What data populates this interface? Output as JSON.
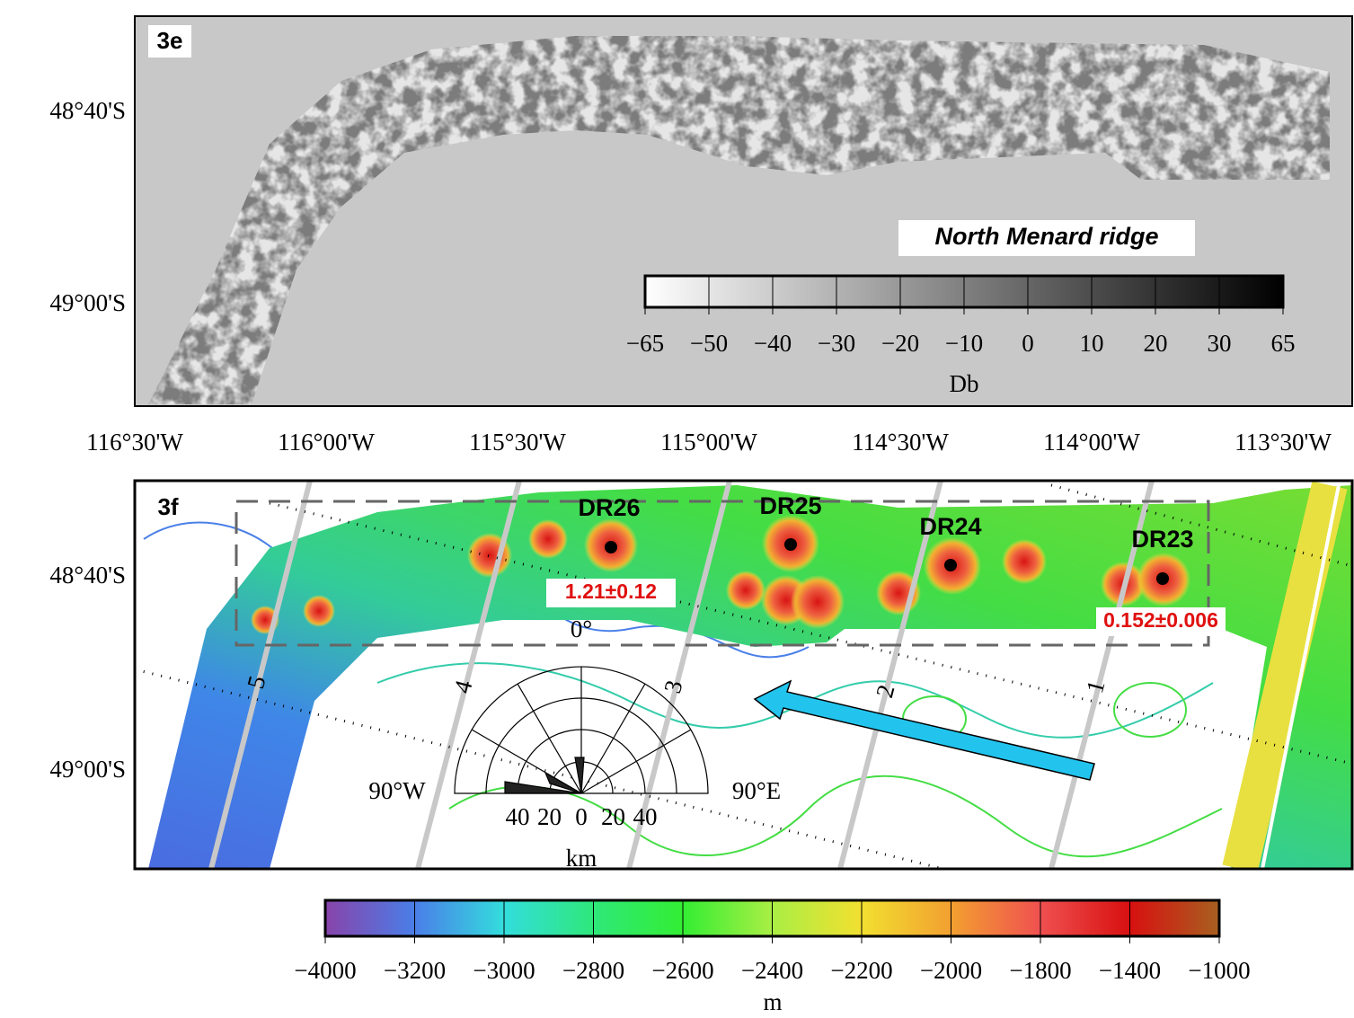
{
  "panel_e": {
    "label": "3e",
    "title": "North Menard ridge",
    "lat_labels": [
      "48°40'S",
      "49°00'S"
    ],
    "colorbar": {
      "ticks": [
        "−65",
        "−50",
        "−40",
        "−30",
        "−20",
        "−10",
        "0",
        "10",
        "20",
        "30",
        "65"
      ],
      "unit": "Db"
    }
  },
  "lon_labels": [
    "116°30'W",
    "116°00'W",
    "115°30'W",
    "115°00'W",
    "114°30'W",
    "114°00'W",
    "113°30'W"
  ],
  "panel_f": {
    "label": "3f",
    "lat_labels": [
      "48°40'S",
      "49°00'S"
    ],
    "samples": [
      {
        "name": "DR26",
        "age": "1.21±0.12"
      },
      {
        "name": "DR25"
      },
      {
        "name": "DR24"
      },
      {
        "name": "DR23",
        "age": "0.152±0.006"
      }
    ],
    "track_labels": [
      "5",
      "4",
      "3",
      "2",
      "1"
    ],
    "rose": {
      "north": "0°",
      "west": "90°W",
      "east": "90°E",
      "scale": [
        "40",
        "20",
        "0",
        "20",
        "40"
      ],
      "unit": "km"
    },
    "colorbar": {
      "ticks": [
        "−4000",
        "−3200",
        "−3000",
        "−2800",
        "−2600",
        "−2400",
        "−2200",
        "−2000",
        "−1800",
        "−1400",
        "−1000"
      ],
      "unit": "m"
    }
  }
}
